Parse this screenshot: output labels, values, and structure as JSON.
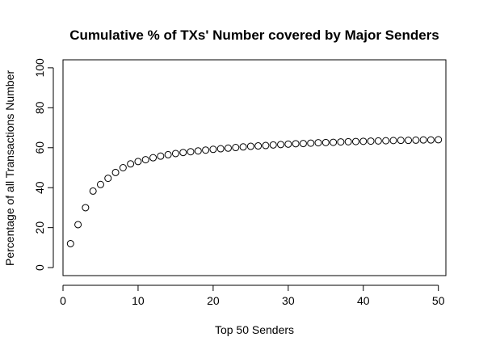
{
  "chart_data": {
    "type": "scatter",
    "title": "Cumulative % of TXs' Number covered by Major Senders",
    "xlabel": "Top 50 Senders",
    "ylabel": "Percentage of all Transactions Number",
    "xlim": [
      0,
      51
    ],
    "ylim": [
      -4,
      104
    ],
    "xticks": [
      0,
      10,
      20,
      30,
      40,
      50
    ],
    "yticks": [
      0,
      20,
      40,
      60,
      80,
      100
    ],
    "xtick_labels": [
      "0",
      "10",
      "20",
      "30",
      "40",
      "50"
    ],
    "ytick_labels": [
      "0",
      "20",
      "40",
      "60",
      "80",
      "100"
    ],
    "grid": false,
    "marker": "open-circle",
    "x": [
      1,
      2,
      3,
      4,
      5,
      6,
      7,
      8,
      9,
      10,
      11,
      12,
      13,
      14,
      15,
      16,
      17,
      18,
      19,
      20,
      21,
      22,
      23,
      24,
      25,
      26,
      27,
      28,
      29,
      30,
      31,
      32,
      33,
      34,
      35,
      36,
      37,
      38,
      39,
      40,
      41,
      42,
      43,
      44,
      45,
      46,
      47,
      48,
      49,
      50
    ],
    "y": [
      12.0,
      21.5,
      30.0,
      38.3,
      41.6,
      44.7,
      47.6,
      50.0,
      51.9,
      53.1,
      54.0,
      55.0,
      55.8,
      56.5,
      57.1,
      57.6,
      58.0,
      58.4,
      58.8,
      59.2,
      59.5,
      59.8,
      60.1,
      60.4,
      60.7,
      60.9,
      61.1,
      61.4,
      61.6,
      61.8,
      62.0,
      62.1,
      62.3,
      62.5,
      62.6,
      62.7,
      62.9,
      63.0,
      63.1,
      63.2,
      63.3,
      63.4,
      63.5,
      63.6,
      63.7,
      63.7,
      63.8,
      63.9,
      63.9,
      64.0
    ]
  }
}
